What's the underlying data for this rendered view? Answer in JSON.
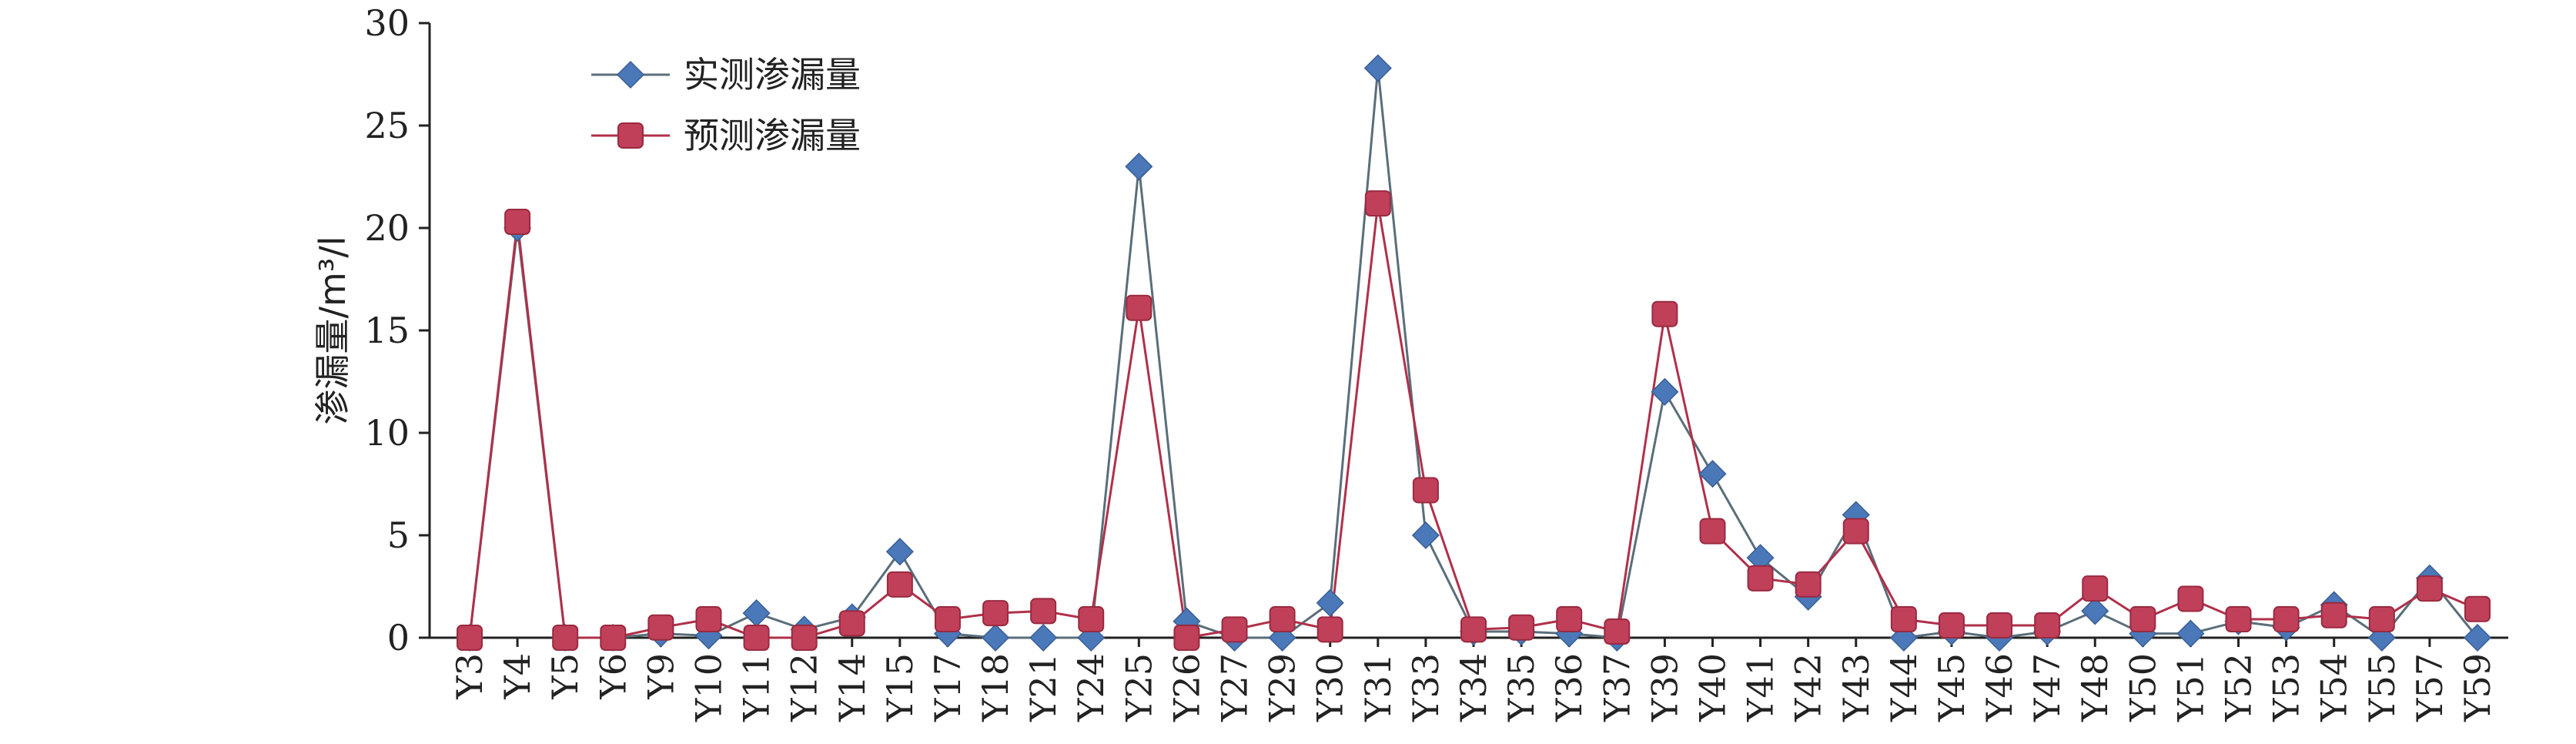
{
  "chart_data": {
    "type": "line",
    "title": "",
    "ylabel": "渗漏量/m³/l",
    "xlabel": "",
    "ylim": [
      0,
      30
    ],
    "yticks": [
      0,
      5,
      10,
      15,
      20,
      25,
      30
    ],
    "grid": false,
    "legend_position": "top-left",
    "categories": [
      "Y3",
      "Y4",
      "Y5",
      "Y6",
      "Y9",
      "Y10",
      "Y11",
      "Y12",
      "Y14",
      "Y15",
      "Y17",
      "Y18",
      "Y21",
      "Y24",
      "Y25",
      "Y26",
      "Y27",
      "Y29",
      "Y30",
      "Y31",
      "Y33",
      "Y34",
      "Y35",
      "Y36",
      "Y37",
      "Y39",
      "Y40",
      "Y41",
      "Y42",
      "Y43",
      "Y44",
      "Y45",
      "Y46",
      "Y47",
      "Y48",
      "Y50",
      "Y51",
      "Y52",
      "Y53",
      "Y54",
      "Y55",
      "Y57",
      "Y59"
    ],
    "series": [
      {
        "name": "实测渗漏量",
        "marker": "diamond",
        "color": "#4a78b8",
        "line_color": "#5a6e7a",
        "values": [
          0,
          20,
          0,
          0,
          0.2,
          0.1,
          1.2,
          0.4,
          1.0,
          4.2,
          0.2,
          0,
          0,
          0,
          23,
          0.8,
          0,
          0,
          1.7,
          27.8,
          5.0,
          0.3,
          0.3,
          0.2,
          0,
          12,
          8,
          3.9,
          2.0,
          6.0,
          0,
          0.3,
          0,
          0.3,
          1.3,
          0.2,
          0.2,
          0.8,
          0.5,
          1.6,
          0,
          2.9,
          0
        ]
      },
      {
        "name": "预测渗漏量",
        "marker": "square",
        "color": "#c0405a",
        "line_color": "#b0304a",
        "values": [
          0,
          20.3,
          0,
          0,
          0.5,
          0.9,
          0,
          0,
          0.7,
          2.6,
          0.9,
          1.2,
          1.3,
          0.9,
          16.1,
          0,
          0.4,
          0.9,
          0.4,
          21.2,
          7.2,
          0.4,
          0.5,
          0.9,
          0.3,
          15.8,
          5.2,
          2.9,
          2.6,
          5.2,
          0.9,
          0.6,
          0.6,
          0.6,
          2.4,
          0.9,
          1.9,
          0.9,
          0.9,
          1.1,
          0.9,
          2.4,
          1.4
        ]
      }
    ]
  }
}
